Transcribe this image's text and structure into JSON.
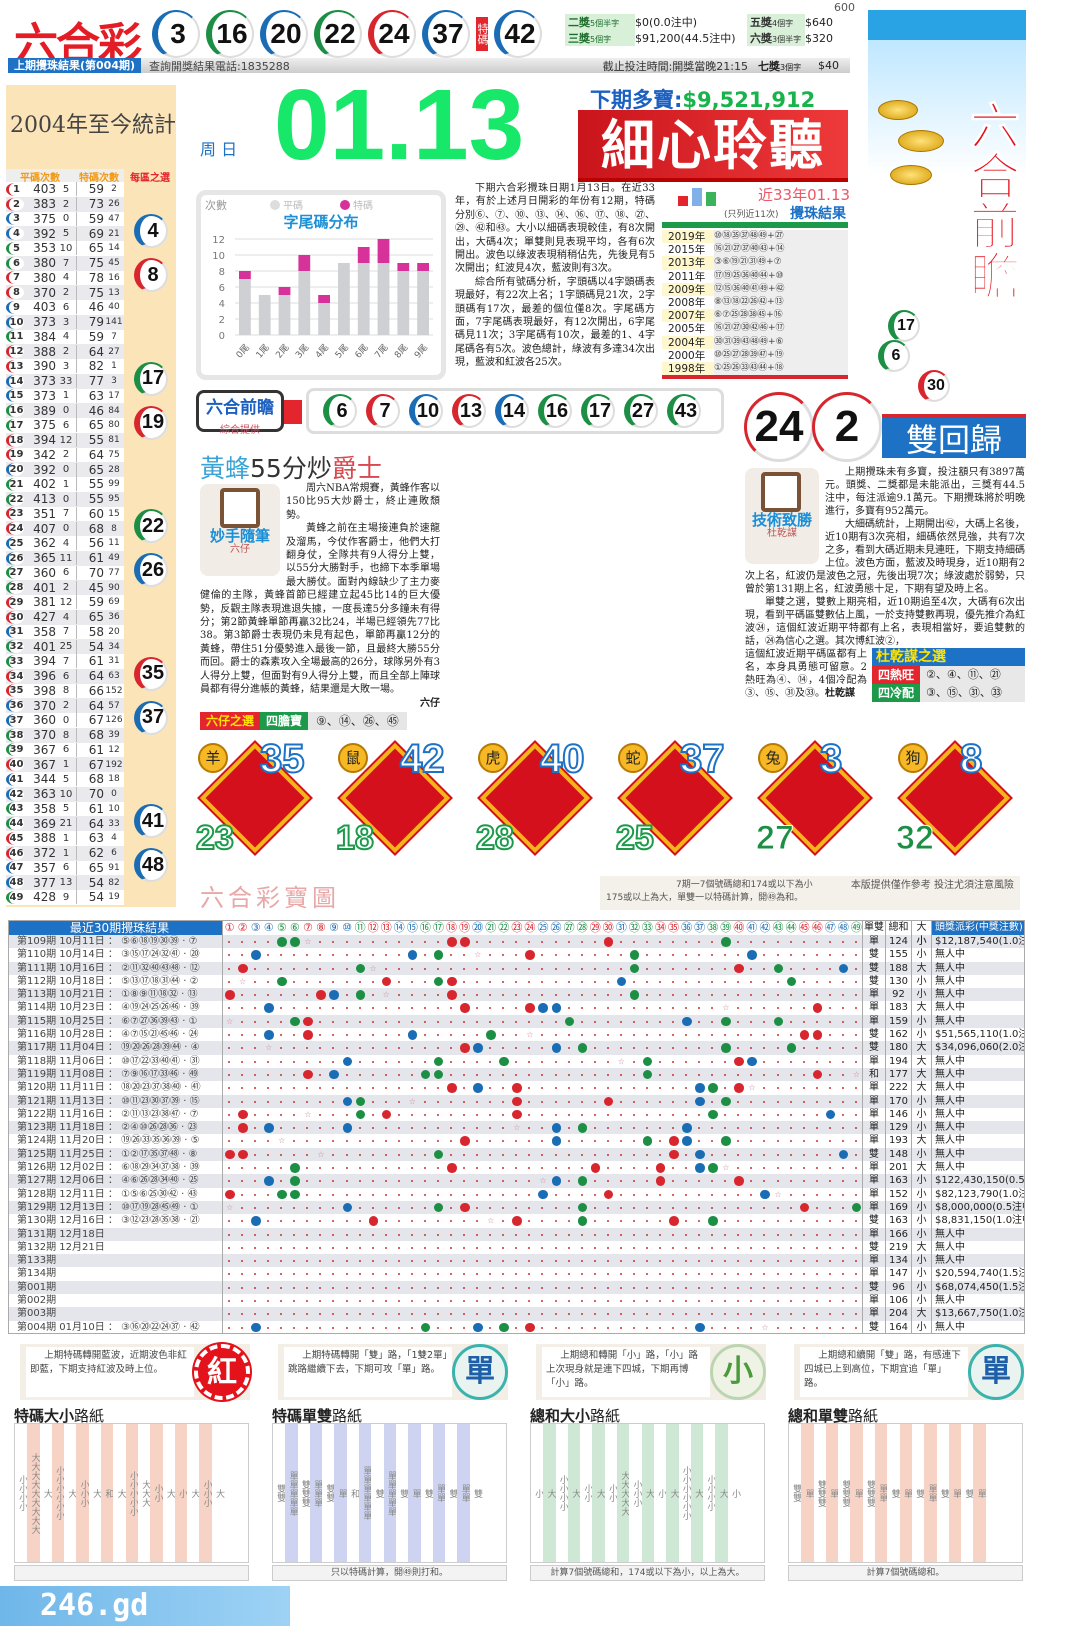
{
  "colors": {
    "red": "#d8262e",
    "blue": "#1a6db5",
    "green": "#1c8f45",
    "accent_green": "#18e86a",
    "brand_blue": "#1d72c6"
  },
  "waves": {
    "red": [
      1,
      2,
      7,
      8,
      12,
      13,
      18,
      19,
      23,
      24,
      29,
      30,
      34,
      35,
      40,
      45,
      46
    ],
    "blue": [
      3,
      4,
      9,
      10,
      14,
      15,
      20,
      25,
      26,
      31,
      36,
      37,
      41,
      42,
      47,
      48
    ],
    "green": [
      5,
      6,
      11,
      16,
      17,
      21,
      22,
      27,
      28,
      32,
      33,
      38,
      39,
      43,
      44,
      49
    ]
  },
  "header": {
    "logo": "六合彩",
    "draw_numbers": [
      3,
      16,
      20,
      22,
      24,
      37
    ],
    "special_label": "特碼",
    "special": 42,
    "last_draw_label": "上期攪珠結果(第004期)",
    "phone": "查詢開獎結果電話:1835288",
    "cutoff": "截止投注時間:開獎當晚21:15",
    "prizes": [
      {
        "name": "二獎",
        "rule": "5個半字",
        "amount": "$0(0.0注中)",
        "name2": "五獎",
        "rule2": "4個字",
        "amount2": "$640"
      },
      {
        "name": "三獎",
        "rule": "5個字",
        "amount": "$91,200(44.5注中)",
        "name2": "六獎",
        "rule2": "3個半字",
        "amount2": "$320"
      },
      {
        "name2": "七獎",
        "rule2": "3個字",
        "amount2": "$40"
      }
    ],
    "corner_num": "600"
  },
  "banner": {
    "title": "六合前瞻",
    "balls": [
      17,
      6,
      30
    ]
  },
  "stats": {
    "title": "2004年至今統計",
    "col_regular": "平碼次數",
    "col_special": "特碼次數",
    "col_picks": "每區之選",
    "rows": [
      [
        1,
        403,
        5,
        59,
        2
      ],
      [
        2,
        383,
        2,
        73,
        26
      ],
      [
        3,
        375,
        0,
        59,
        47
      ],
      [
        4,
        392,
        5,
        69,
        21
      ],
      [
        5,
        353,
        10,
        65,
        14
      ],
      [
        6,
        380,
        7,
        75,
        45
      ],
      [
        7,
        380,
        4,
        78,
        16
      ],
      [
        8,
        370,
        2,
        75,
        13
      ],
      [
        9,
        403,
        6,
        46,
        40
      ],
      [
        10,
        373,
        3,
        79,
        141
      ],
      [
        11,
        384,
        4,
        59,
        7
      ],
      [
        12,
        388,
        2,
        64,
        27
      ],
      [
        13,
        390,
        3,
        82,
        1
      ],
      [
        14,
        373,
        33,
        77,
        3
      ],
      [
        15,
        373,
        1,
        63,
        17
      ],
      [
        16,
        389,
        0,
        46,
        84
      ],
      [
        17,
        375,
        6,
        65,
        80
      ],
      [
        18,
        394,
        12,
        55,
        81
      ],
      [
        19,
        342,
        2,
        64,
        75
      ],
      [
        20,
        392,
        0,
        65,
        28
      ],
      [
        21,
        402,
        1,
        55,
        99
      ],
      [
        22,
        413,
        0,
        55,
        95
      ],
      [
        23,
        351,
        7,
        60,
        15
      ],
      [
        24,
        407,
        0,
        68,
        8
      ],
      [
        25,
        362,
        4,
        56,
        11
      ],
      [
        26,
        365,
        11,
        61,
        49
      ],
      [
        27,
        360,
        6,
        70,
        77
      ],
      [
        28,
        401,
        2,
        45,
        90
      ],
      [
        29,
        381,
        12,
        59,
        69
      ],
      [
        30,
        427,
        4,
        65,
        36
      ],
      [
        31,
        358,
        7,
        58,
        20
      ],
      [
        32,
        401,
        25,
        54,
        34
      ],
      [
        33,
        394,
        7,
        61,
        31
      ],
      [
        34,
        396,
        6,
        64,
        63
      ],
      [
        35,
        398,
        8,
        66,
        152
      ],
      [
        36,
        370,
        2,
        64,
        57
      ],
      [
        37,
        360,
        0,
        67,
        126
      ],
      [
        38,
        370,
        8,
        68,
        39
      ],
      [
        39,
        367,
        6,
        61,
        12
      ],
      [
        40,
        367,
        1,
        67,
        192
      ],
      [
        41,
        344,
        5,
        68,
        18
      ],
      [
        42,
        363,
        10,
        70,
        0
      ],
      [
        43,
        358,
        5,
        61,
        10
      ],
      [
        44,
        369,
        21,
        64,
        33
      ],
      [
        45,
        388,
        1,
        63,
        4
      ],
      [
        46,
        372,
        1,
        62,
        6
      ],
      [
        47,
        357,
        6,
        65,
        91
      ],
      [
        48,
        377,
        13,
        54,
        82
      ],
      [
        49,
        428,
        9,
        54,
        19
      ]
    ],
    "picks": [
      4,
      8,
      17,
      19,
      22,
      26,
      35,
      37,
      41,
      48
    ]
  },
  "date": {
    "weekday": "周 日",
    "date": "01.13"
  },
  "jackpot": {
    "label": "下期多寶:",
    "amount": "$9,521,912"
  },
  "headline": "細心聆聽",
  "chart_data": {
    "type": "bar",
    "stacked": true,
    "title": "字尾碼分布",
    "ylabel": "次數",
    "categories": [
      "0尾",
      "1尾",
      "2尾",
      "3尾",
      "4尾",
      "5尾",
      "6尾",
      "7尾",
      "8尾",
      "9尾"
    ],
    "series": [
      {
        "name": "平碼",
        "color": "#cfd0d4",
        "values": [
          7,
          5,
          5,
          8,
          4,
          9,
          9,
          9,
          8,
          8
        ]
      },
      {
        "name": "特碼",
        "color": "#d6329a",
        "values": [
          1,
          0,
          1,
          2,
          1,
          0,
          2,
          3,
          1,
          1
        ]
      }
    ],
    "ylim": [
      0,
      12
    ],
    "yticks": [
      0,
      2,
      4,
      6,
      8,
      10,
      12
    ],
    "grid": true,
    "legend": "top"
  },
  "article1": [
    "下期六合彩攪珠日期1月13日。在近33年，有於上述月日開彩的年份有12期，特碼分別⑥、⑦、⑩、⑬、⑭、⑯、⑰、⑱、㉗、㉙、㊷和㊸。大小以細碼表現較佳，有8次開出，大碼4次；單雙則見表現平均，各有6次開出。波色以綠波表現稍稍佔先，先後見有5次開出；紅波見4次，藍波則有3次。",
    "綜合所有號碼分析，字頭碼以4字頭碼表現最好，有22次上名；1字頭碼見21次，2字頭碼有17次，最差的個位僅8次。字尾碼方面，7字尾碼表現最好，有12次開出，6字尾碼見11次；3字尾碼有10次，最差的1、4字尾碼各有5次。波色總計，綠波有多達34次出現，藍波和紅波各25次。"
  ],
  "years": {
    "title": "近33年01.13",
    "note": "(只列近11次)",
    "subtitle": "攪珠結果",
    "rows": [
      {
        "year": "2019年",
        "nums": "⑩⑱㉟㊲㊽㊾+㉗"
      },
      {
        "year": "2015年",
        "nums": "⑯㉑㉗㊲㊵㊸+⑭"
      },
      {
        "year": "2013年",
        "nums": "③⑥⑲㉑㉛㊾+⑦"
      },
      {
        "year": "2011年",
        "nums": "⑰⑲㉕㊱㊵㊹+⑩"
      },
      {
        "year": "2009年",
        "nums": "⑫⑮㊱㊵㊶㊾+㊷"
      },
      {
        "year": "2008年",
        "nums": "⑧⑬⑱㉒㉖㊷+⑬"
      },
      {
        "year": "2007年",
        "nums": "⑥⑦㉕㉘㊳㊺+⑯"
      },
      {
        "year": "2005年",
        "nums": "⑯㉑㉗㉚㊷㊻+⑰"
      },
      {
        "year": "2004年",
        "nums": "㉚㉛㊴㊸㊽㊾+⑥"
      },
      {
        "year": "2000年",
        "nums": "⑩㉕㉗㉘㊴㊼+⑲"
      },
      {
        "year": "1998年",
        "nums": "①㉕㉖㉝㊸㊹+⑱"
      }
    ]
  },
  "forecast": {
    "title": "六合前瞻",
    "source": "綜合提供",
    "numbers": [
      6,
      7,
      10,
      13,
      14,
      16,
      17,
      27,
      43
    ]
  },
  "article2": {
    "title_a": "黃蜂",
    "title_b": "55",
    "title_c": "分炒",
    "title_d": "爵士",
    "column": "妙手隨筆",
    "author": "六仔",
    "paras": [
      "周六NBA常規賽，黃蜂作客以150比95大炒爵士，終止連敗頹勢。",
      "黃蜂之前在主場接連負於速龍及溜馬，今仗作客爵士，他們大打翻身仗，全隊共有9人得分上雙，以55分大勝對手，也締下本季單場最大勝仗。面對內線缺少了主力麥健倫的主隊，黃蜂首節已經建立起45比14的巨大優勢，反觀主隊表現進退失據，一度長達5分多鐘未有得分；第2節黃蜂單節再贏32比24，半場已經領先77比38。第3節爵士表現仍未見有起色，單節再贏12分的黃蜂，帶住51分優勢進入最後一節，且最終大勝55分而回。爵士的森素攻入全場最高的26分，球隊另外有3人得分上雙，但面對有9人得分上雙，而且全部上陣球員都有得分進帳的黃蜂，結果還是大敗一場。"
    ],
    "sign": "六仔",
    "pick_label": "六仔之選",
    "pick_type": "四膽寶",
    "pick_nums": "⑨、⑭、㉖、㊺"
  },
  "return": {
    "balls": [
      24,
      2
    ],
    "title": "雙回歸"
  },
  "article3": {
    "column": "技術致勝",
    "author": "杜乾謀",
    "paras": [
      "上期攪珠未有多寶，投注額只有3897萬元。頭獎、二獎都是未能派出，三獎有44.5注中，每注派逾9.1萬元。下期攪珠將於明晚進行，多寶有952萬元。",
      "大細碼統計，上期開出㊷，大碼上名後，近10期有3次亮相，細碼依然見強，共有7次之多，看到大碼近期未見連旺，下期支持細碼上位。波色方面，藍波及時現身，近10期有2次上名，紅波仍是波色之冠，先後出現7次；綠波處於弱勢，只曾於第131期上名，紅波勇態十足，下期有望及時上名。",
      "單雙之選，雙數上期亮相，近10期追至4次，大碼有6次出現，看到平碼區雙數佔上風，一於支持雙數再現，優先推介為紅波㉔，這個紅波近期平特都有上名，表現相當好，要追雙數的話，㉔為信心之選。其次博紅波②，"
    ],
    "tail": "這個紅波近期平碼區都有上名，本身具勇態可留意。2熱旺為④、⑭，4個冷配為③、⑮、㉛及㉝。",
    "sign": "杜乾謀",
    "picks_title": "杜乾謀之選",
    "hot_label": "四熱旺",
    "hot": "②、④、⑪、㉑",
    "cold_label": "四冷配",
    "cold": "③、⑮、㉛、㉝"
  },
  "zodiac": [
    {
      "animal": "羊",
      "top": 35,
      "bottom": 23
    },
    {
      "animal": "鼠",
      "top": 42,
      "bottom": 18
    },
    {
      "animal": "虎",
      "top": 40,
      "bottom": 28
    },
    {
      "animal": "蛇",
      "top": 37,
      "bottom": 25
    },
    {
      "animal": "兔",
      "top": 3,
      "bottom": 27
    },
    {
      "animal": "狗",
      "top": 8,
      "bottom": 32
    }
  ],
  "treasure": {
    "title": "六合彩寶圖",
    "note1": "7期一7個號碼總和174或以下為小",
    "note2": "175或以上為大，單雙一以特碼計算，開㊾為和。",
    "disclaimer": "本版提供僅作參考 投注尤須注意風險"
  },
  "table": {
    "title": "最近30期攪珠結果",
    "col_oe": "單雙",
    "col_sum": "總和",
    "col_size": "大小",
    "col_jackpot": "頭獎派彩(中獎注數)",
    "rows": [
      {
        "period": "第109期",
        "date": "10月11日",
        "nums": [
          5,
          6,
          18,
          19,
          30,
          39
        ],
        "sp": 7,
        "oe": "單",
        "sum": 124,
        "size": "小",
        "jp": "$12,187,540(1.0注中)"
      },
      {
        "period": "第110期",
        "date": "10月14日",
        "nums": [
          3,
          15,
          17,
          24,
          32,
          41
        ],
        "sp": 20,
        "oe": "雙",
        "sum": 155,
        "size": "小",
        "jp": "無人中"
      },
      {
        "period": "第111期",
        "date": "10月16日",
        "nums": [
          2,
          11,
          32,
          40,
          43,
          48
        ],
        "sp": 12,
        "oe": "雙",
        "sum": 188,
        "size": "大",
        "jp": "無人中"
      },
      {
        "period": "第112期",
        "date": "10月18日",
        "nums": [
          5,
          13,
          17,
          18,
          31,
          44
        ],
        "sp": 2,
        "oe": "雙",
        "sum": 130,
        "size": "小",
        "jp": "無人中"
      },
      {
        "period": "第113期",
        "date": "10月21日",
        "nums": [
          1,
          8,
          9,
          11,
          18,
          32
        ],
        "sp": 13,
        "oe": "單",
        "sum": 92,
        "size": "小",
        "jp": "無人中"
      },
      {
        "period": "第114期",
        "date": "10月23日",
        "nums": [
          4,
          19,
          24,
          25,
          26,
          46
        ],
        "sp": 39,
        "oe": "單",
        "sum": 183,
        "size": "大",
        "jp": "無人中"
      },
      {
        "period": "第115期",
        "date": "10月25日",
        "nums": [
          6,
          7,
          27,
          36,
          39,
          43
        ],
        "sp": 1,
        "oe": "單",
        "sum": 159,
        "size": "小",
        "jp": "無人中"
      },
      {
        "period": "第116期",
        "date": "10月28日",
        "nums": [
          4,
          7,
          15,
          21,
          45,
          46
        ],
        "sp": 24,
        "oe": "雙",
        "sum": 162,
        "size": "小",
        "jp": "$51,565,110(1.0注中)"
      },
      {
        "period": "第117期",
        "date": "11月04日",
        "nums": [
          19,
          20,
          26,
          28,
          39,
          44
        ],
        "sp": 4,
        "oe": "雙",
        "sum": 180,
        "size": "大",
        "jp": "$34,096,060(2.0注中)"
      },
      {
        "period": "第118期",
        "date": "11月06日",
        "nums": [
          10,
          17,
          22,
          33,
          40,
          41
        ],
        "sp": 31,
        "oe": "單",
        "sum": 194,
        "size": "大",
        "jp": "無人中"
      },
      {
        "period": "第119期",
        "date": "11月08日",
        "nums": [
          7,
          9,
          16,
          17,
          33,
          46
        ],
        "sp": 49,
        "oe": "和",
        "sum": 177,
        "size": "大",
        "jp": "無人中"
      },
      {
        "period": "第120期",
        "date": "11月11日",
        "nums": [
          18,
          20,
          23,
          37,
          38,
          40
        ],
        "sp": 41,
        "oe": "單",
        "sum": 222,
        "size": "大",
        "jp": "無人中"
      },
      {
        "period": "第121期",
        "date": "11月13日",
        "nums": [
          10,
          11,
          23,
          30,
          37,
          39
        ],
        "sp": 15,
        "oe": "單",
        "sum": 170,
        "size": "小",
        "jp": "無人中"
      },
      {
        "period": "第122期",
        "date": "11月16日",
        "nums": [
          2,
          11,
          13,
          23,
          38,
          47
        ],
        "sp": 7,
        "oe": "單",
        "sum": 146,
        "size": "小",
        "jp": "無人中"
      },
      {
        "period": "第123期",
        "date": "11月18日",
        "nums": [
          2,
          4,
          10,
          26,
          28,
          36
        ],
        "sp": 23,
        "oe": "單",
        "sum": 129,
        "size": "小",
        "jp": "無人中"
      },
      {
        "period": "第124期",
        "date": "11月20日",
        "nums": [
          19,
          26,
          33,
          35,
          36,
          39
        ],
        "sp": 5,
        "oe": "單",
        "sum": 193,
        "size": "大",
        "jp": "無人中"
      },
      {
        "period": "第125期",
        "date": "11月25日",
        "nums": [
          1,
          2,
          17,
          35,
          37,
          48
        ],
        "sp": 8,
        "oe": "雙",
        "sum": 148,
        "size": "小",
        "jp": "無人中"
      },
      {
        "period": "第126期",
        "date": "12月02日",
        "nums": [
          6,
          18,
          29,
          34,
          37,
          38
        ],
        "sp": 39,
        "oe": "單",
        "sum": 201,
        "size": "大",
        "jp": "無人中"
      },
      {
        "period": "第127期",
        "date": "12月06日",
        "nums": [
          4,
          6,
          26,
          28,
          34,
          40
        ],
        "sp": 25,
        "oe": "單",
        "sum": 163,
        "size": "小",
        "jp": "$122,430,150(0.5注中)"
      },
      {
        "period": "第128期",
        "date": "12月11日",
        "nums": [
          1,
          5,
          6,
          25,
          30,
          42
        ],
        "sp": 43,
        "oe": "單",
        "sum": 152,
        "size": "小",
        "jp": "$82,123,790(1.0注中)"
      },
      {
        "period": "第129期",
        "date": "12月13日",
        "nums": [
          10,
          17,
          19,
          28,
          45,
          49
        ],
        "sp": 1,
        "oe": "單",
        "sum": 169,
        "size": "小",
        "jp": "$8,000,000(0.5注中)"
      },
      {
        "period": "第130期",
        "date": "12月16日",
        "nums": [
          3,
          12,
          23,
          28,
          35,
          38
        ],
        "sp": 21,
        "oe": "雙",
        "sum": 163,
        "size": "小",
        "jp": "$8,831,150(1.0注中)"
      },
      {
        "period": "第131期",
        "date": "12月18日",
        "nums": [],
        "sp": null,
        "oe": "單",
        "sum": 166,
        "size": "小",
        "jp": "無人中"
      },
      {
        "period": "第132期",
        "date": "12月21日",
        "nums": [],
        "sp": null,
        "oe": "雙",
        "sum": 219,
        "size": "大",
        "jp": "無人中"
      },
      {
        "period": "第133期",
        "date": "",
        "nums": [],
        "sp": null,
        "oe": "單",
        "sum": 134,
        "size": "小",
        "jp": "無人中"
      },
      {
        "period": "第134期",
        "date": "",
        "nums": [],
        "sp": null,
        "oe": "單",
        "sum": 147,
        "size": "小",
        "jp": "$20,594,740(1.5注中)"
      },
      {
        "period": "第001期",
        "date": "",
        "nums": [],
        "sp": null,
        "oe": "雙",
        "sum": 96,
        "size": "小",
        "jp": "$68,074,450(1.5注中)"
      },
      {
        "period": "第002期",
        "date": "",
        "nums": [],
        "sp": null,
        "oe": "單",
        "sum": 106,
        "size": "小",
        "jp": "無人中"
      },
      {
        "period": "第003期",
        "date": "",
        "nums": [],
        "sp": null,
        "oe": "單",
        "sum": 204,
        "size": "大",
        "jp": "$13,667,750(1.0注中)"
      },
      {
        "period": "第004期",
        "date": "01月10日",
        "nums": [
          3,
          16,
          20,
          22,
          24,
          37
        ],
        "sp": 42,
        "oe": "雙",
        "sum": 164,
        "size": "小",
        "jp": "無人中"
      }
    ]
  },
  "tips": [
    {
      "text": "上期特碼轉開藍波，近期波色非紅即藍，下期支持紅波及時上位。",
      "badge": "紅"
    },
    {
      "text": "上期特碼轉開「雙」路，「1雙2單」跳路繼續下去，下期可攻「單」路。",
      "badge": "單"
    },
    {
      "text": "上期總和轉開「小」路，「小」路上次現身就是連下四城，下期再博「小」路。",
      "badge": "小"
    },
    {
      "text": "上期總和續開「雙」路，有感連下四城已上到高位，下期宜追「單」路。",
      "badge": "單"
    }
  ],
  "roads": [
    {
      "title_a": "特碼大小",
      "title_b": "路紙",
      "foot": "",
      "cols": [
        "小小小小",
        "大大大大大大大大大",
        "大",
        "小小小小小小",
        "大",
        "小小小",
        "大",
        "和",
        "大",
        "小小小小小",
        "大大大",
        "小小",
        "大",
        "小",
        "大",
        "小小小",
        "大"
      ]
    },
    {
      "title_a": "特碼單雙",
      "title_b": "路紙",
      "foot": "只以特碼計算，開㊾則打和。",
      "cols": [
        "雙雙",
        "單單單單單",
        "雙雙雙",
        "單單單",
        "雙雙",
        "單",
        "和",
        "單單單單單單",
        "雙",
        "單單單單單",
        "雙",
        "單",
        "雙",
        "單單",
        "雙",
        "單單",
        "雙"
      ]
    },
    {
      "title_a": "總和大小",
      "title_b": "路紙",
      "foot": "計算7個號碼總和，174或以下為小，以上為大。",
      "cols": [
        "小",
        "大",
        "小小小小",
        "大",
        "小小",
        "大",
        "小小",
        "大大大大大",
        "小小小",
        "大",
        "小",
        "大",
        "小小小小小小",
        "大",
        "小小小小",
        "大",
        "小"
      ]
    },
    {
      "title_a": "總和單雙",
      "title_b": "路紙",
      "foot": "計算7個號碼總和。",
      "cols": [
        "雙雙",
        "單",
        "雙雙雙",
        "單",
        "雙雙雙",
        "單",
        "雙雙雙",
        "單單",
        "雙",
        "單",
        "雙",
        "單單",
        "雙",
        "單",
        "雙",
        "單"
      ]
    }
  ],
  "watermark": "246.gd"
}
